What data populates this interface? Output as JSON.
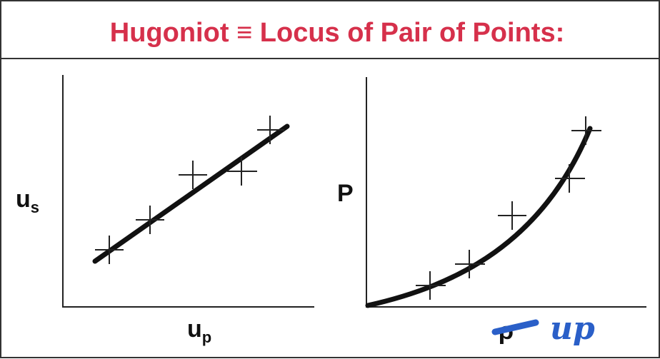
{
  "title": "Hugoniot ≡ Locus of Pair of Points:",
  "left_plot": {
    "y_label": {
      "main": "u",
      "sub": "s"
    },
    "x_label": {
      "main": "u",
      "sub": "p"
    }
  },
  "right_plot": {
    "y_label": "P",
    "x_label": "ρ",
    "annotation": "up"
  }
}
